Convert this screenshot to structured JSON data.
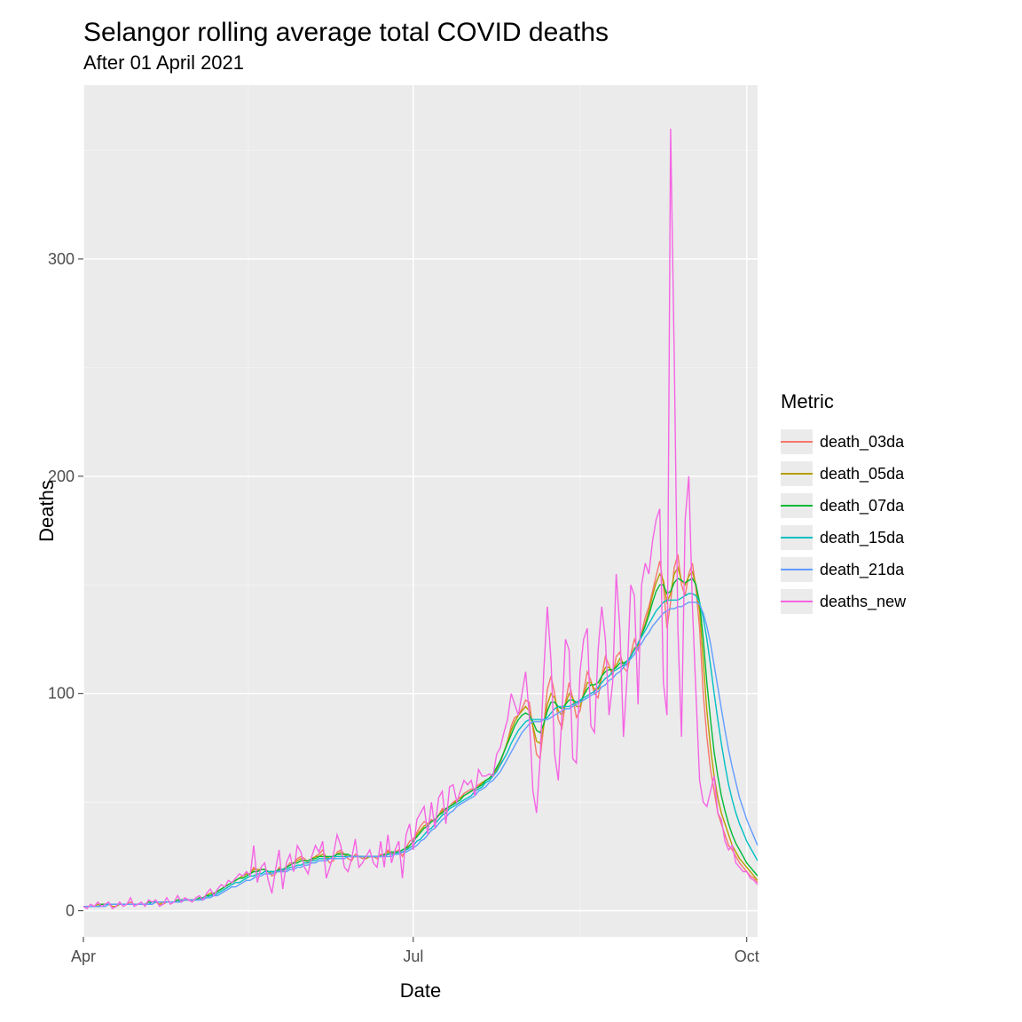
{
  "title": "Selangor rolling average total COVID deaths",
  "subtitle": "After 01 April 2021",
  "xlabel": "Date",
  "ylabel": "Deaths",
  "legend_title": "Metric",
  "chart": {
    "type": "line",
    "background_color": "#ebebeb",
    "grid_major_color": "#ffffff",
    "grid_minor_color": "#f5f5f5",
    "axis_text_color": "#4d4d4d",
    "axis_title_color": "#000000",
    "title_fontsize": 30,
    "subtitle_fontsize": 22,
    "axis_title_fontsize": 22,
    "axis_text_fontsize": 18,
    "legend_title_fontsize": 22,
    "legend_text_fontsize": 18,
    "line_width": 1.4,
    "x_domain_days": [
      0,
      186
    ],
    "x_ticks": [
      {
        "day": 0,
        "label": "Apr"
      },
      {
        "day": 91,
        "label": "Jul"
      },
      {
        "day": 183,
        "label": "Oct"
      }
    ],
    "y_domain": [
      -12,
      380
    ],
    "y_ticks": [
      0,
      100,
      200,
      300
    ],
    "y_minor_ticks": [
      50,
      150,
      250,
      350
    ],
    "series": [
      {
        "name": "death_03da",
        "color": "#f8766d",
        "values": [
          2,
          2,
          2,
          2,
          3,
          3,
          3,
          3,
          2,
          2,
          3,
          3,
          3,
          4,
          3,
          3,
          3,
          3,
          4,
          4,
          4,
          3,
          3,
          4,
          4,
          4,
          5,
          5,
          5,
          5,
          5,
          5,
          6,
          6,
          7,
          8,
          8,
          9,
          10,
          11,
          12,
          13,
          14,
          15,
          16,
          17,
          17,
          20,
          18,
          19,
          19,
          18,
          16,
          17,
          20,
          18,
          20,
          22,
          22,
          24,
          25,
          24,
          22,
          23,
          25,
          26,
          28,
          24,
          22,
          23,
          27,
          28,
          26,
          24,
          23,
          26,
          25,
          24,
          24,
          25,
          25,
          24,
          26,
          25,
          28,
          26,
          27,
          28,
          25,
          29,
          32,
          33,
          36,
          39,
          41,
          40,
          42,
          41,
          44,
          47,
          46,
          48,
          50,
          51,
          52,
          54,
          55,
          56,
          56,
          58,
          59,
          60,
          61,
          62,
          65,
          68,
          73,
          78,
          85,
          89,
          90,
          93,
          97,
          96,
          84,
          72,
          70,
          85,
          102,
          108,
          100,
          88,
          84,
          96,
          105,
          98,
          89,
          92,
          101,
          110,
          106,
          100,
          98,
          108,
          117,
          113,
          108,
          117,
          119,
          112,
          110,
          118,
          125,
          120,
          128,
          135,
          140,
          147,
          154,
          161,
          150,
          130,
          142,
          158,
          164,
          150,
          145,
          155,
          160,
          148,
          130,
          100,
          80,
          65,
          55,
          45,
          40,
          35,
          30,
          28,
          25,
          22,
          20,
          18,
          16,
          15,
          13
        ]
      },
      {
        "name": "death_05da",
        "color": "#b79f00",
        "values": [
          2,
          2,
          2,
          2,
          3,
          3,
          3,
          3,
          2,
          2,
          3,
          3,
          3,
          3,
          3,
          3,
          3,
          3,
          4,
          4,
          4,
          3,
          4,
          4,
          4,
          4,
          5,
          5,
          5,
          5,
          5,
          5,
          6,
          6,
          7,
          8,
          8,
          9,
          10,
          11,
          12,
          13,
          14,
          15,
          16,
          17,
          17,
          19,
          19,
          19,
          19,
          18,
          17,
          18,
          19,
          19,
          20,
          21,
          22,
          23,
          24,
          23,
          23,
          24,
          25,
          25,
          26,
          25,
          24,
          25,
          26,
          27,
          26,
          25,
          25,
          25,
          25,
          25,
          24,
          25,
          25,
          25,
          25,
          26,
          27,
          27,
          27,
          27,
          27,
          28,
          30,
          32,
          35,
          37,
          39,
          40,
          41,
          42,
          44,
          46,
          47,
          48,
          49,
          51,
          52,
          53,
          54,
          55,
          56,
          57,
          59,
          60,
          61,
          63,
          65,
          69,
          73,
          78,
          83,
          87,
          90,
          92,
          94,
          92,
          85,
          78,
          77,
          85,
          95,
          100,
          98,
          92,
          90,
          95,
          100,
          98,
          94,
          94,
          99,
          105,
          105,
          102,
          102,
          108,
          112,
          112,
          110,
          113,
          116,
          114,
          113,
          117,
          121,
          122,
          127,
          132,
          138,
          145,
          151,
          155,
          152,
          142,
          146,
          155,
          158,
          152,
          150,
          154,
          156,
          150,
          138,
          115,
          92,
          75,
          62,
          52,
          45,
          40,
          35,
          30,
          27,
          24,
          22,
          20,
          18,
          16,
          14
        ]
      },
      {
        "name": "death_07da",
        "color": "#00ba38",
        "values": [
          2,
          2,
          2,
          2,
          2,
          3,
          3,
          3,
          3,
          3,
          3,
          3,
          3,
          3,
          3,
          3,
          3,
          3,
          4,
          4,
          4,
          4,
          4,
          4,
          4,
          4,
          5,
          5,
          5,
          5,
          5,
          5,
          6,
          6,
          7,
          7,
          8,
          9,
          10,
          11,
          12,
          13,
          14,
          15,
          15,
          16,
          17,
          18,
          18,
          19,
          19,
          18,
          18,
          18,
          19,
          19,
          20,
          21,
          22,
          22,
          23,
          23,
          23,
          24,
          24,
          25,
          25,
          25,
          25,
          25,
          26,
          26,
          26,
          26,
          25,
          25,
          25,
          25,
          25,
          25,
          25,
          25,
          25,
          26,
          26,
          27,
          27,
          27,
          28,
          29,
          30,
          32,
          34,
          36,
          38,
          39,
          41,
          42,
          44,
          45,
          47,
          48,
          49,
          50,
          51,
          53,
          54,
          55,
          56,
          57,
          58,
          60,
          61,
          63,
          66,
          69,
          73,
          77,
          81,
          85,
          88,
          90,
          91,
          90,
          87,
          83,
          82,
          86,
          92,
          96,
          96,
          94,
          93,
          95,
          97,
          97,
          96,
          96,
          99,
          102,
          104,
          104,
          105,
          108,
          110,
          111,
          111,
          112,
          114,
          114,
          115,
          117,
          120,
          123,
          127,
          131,
          136,
          142,
          147,
          150,
          150,
          146,
          147,
          151,
          153,
          152,
          151,
          152,
          153,
          150,
          142,
          125,
          105,
          88,
          73,
          62,
          53,
          46,
          40,
          35,
          31,
          28,
          25,
          22,
          20,
          18,
          16
        ]
      },
      {
        "name": "death_15da",
        "color": "#00bfc4",
        "values": [
          2,
          2,
          2,
          2,
          2,
          2,
          3,
          3,
          3,
          3,
          3,
          3,
          3,
          3,
          3,
          3,
          3,
          3,
          3,
          4,
          4,
          4,
          4,
          4,
          4,
          4,
          4,
          5,
          5,
          5,
          5,
          5,
          5,
          6,
          6,
          7,
          7,
          8,
          9,
          10,
          11,
          12,
          13,
          13,
          14,
          15,
          16,
          16,
          17,
          17,
          18,
          18,
          18,
          18,
          18,
          19,
          19,
          20,
          20,
          21,
          21,
          22,
          22,
          23,
          23,
          24,
          24,
          24,
          24,
          25,
          25,
          25,
          25,
          25,
          25,
          25,
          25,
          25,
          25,
          25,
          25,
          25,
          25,
          25,
          26,
          26,
          26,
          27,
          27,
          28,
          29,
          30,
          32,
          33,
          35,
          37,
          38,
          40,
          42,
          44,
          45,
          47,
          48,
          49,
          50,
          51,
          52,
          53,
          55,
          56,
          57,
          59,
          60,
          62,
          64,
          67,
          70,
          73,
          77,
          80,
          83,
          85,
          87,
          88,
          88,
          88,
          88,
          88,
          89,
          91,
          93,
          94,
          94,
          94,
          94,
          95,
          96,
          97,
          98,
          99,
          100,
          101,
          103,
          105,
          107,
          108,
          110,
          111,
          112,
          113,
          115,
          117,
          120,
          123,
          126,
          129,
          132,
          135,
          138,
          140,
          142,
          143,
          143,
          143,
          143,
          144,
          145,
          146,
          146,
          145,
          142,
          135,
          125,
          113,
          100,
          88,
          77,
          67,
          58,
          51,
          45,
          40,
          36,
          32,
          29,
          26,
          23
        ]
      },
      {
        "name": "death_21da",
        "color": "#619cff",
        "values": [
          2,
          2,
          2,
          2,
          2,
          2,
          2,
          3,
          3,
          3,
          3,
          3,
          3,
          3,
          3,
          3,
          3,
          3,
          3,
          3,
          4,
          4,
          4,
          4,
          4,
          4,
          4,
          4,
          5,
          5,
          5,
          5,
          5,
          5,
          6,
          6,
          7,
          7,
          8,
          9,
          10,
          11,
          11,
          12,
          13,
          14,
          14,
          15,
          16,
          16,
          17,
          17,
          17,
          18,
          18,
          18,
          18,
          19,
          19,
          20,
          20,
          21,
          21,
          22,
          22,
          23,
          23,
          23,
          24,
          24,
          24,
          24,
          24,
          25,
          25,
          25,
          25,
          25,
          25,
          25,
          25,
          25,
          25,
          25,
          25,
          25,
          26,
          26,
          27,
          27,
          28,
          29,
          30,
          32,
          33,
          35,
          37,
          38,
          40,
          42,
          43,
          45,
          46,
          48,
          49,
          50,
          51,
          52,
          53,
          55,
          56,
          57,
          59,
          60,
          62,
          64,
          67,
          70,
          73,
          76,
          79,
          82,
          84,
          86,
          87,
          87,
          87,
          88,
          88,
          89,
          90,
          91,
          92,
          93,
          93,
          94,
          95,
          96,
          97,
          98,
          99,
          100,
          101,
          103,
          104,
          106,
          107,
          109,
          110,
          112,
          114,
          116,
          118,
          121,
          123,
          126,
          128,
          131,
          133,
          135,
          137,
          138,
          139,
          139,
          140,
          140,
          141,
          142,
          142,
          142,
          141,
          137,
          131,
          123,
          113,
          103,
          93,
          83,
          74,
          66,
          59,
          52,
          47,
          42,
          38,
          34,
          30
        ]
      },
      {
        "name": "deaths_new",
        "color": "#f564e3",
        "values": [
          2,
          1,
          3,
          2,
          4,
          2,
          3,
          4,
          1,
          2,
          4,
          2,
          3,
          6,
          2,
          3,
          4,
          2,
          5,
          4,
          5,
          2,
          3,
          6,
          3,
          4,
          7,
          4,
          6,
          5,
          4,
          6,
          7,
          5,
          8,
          10,
          7,
          10,
          12,
          11,
          14,
          13,
          15,
          17,
          16,
          18,
          16,
          30,
          13,
          20,
          22,
          14,
          8,
          19,
          28,
          10,
          22,
          26,
          18,
          30,
          27,
          20,
          17,
          25,
          30,
          27,
          32,
          15,
          20,
          26,
          35,
          30,
          20,
          18,
          24,
          33,
          20,
          22,
          25,
          28,
          22,
          20,
          32,
          20,
          35,
          22,
          28,
          32,
          15,
          35,
          40,
          28,
          42,
          45,
          48,
          35,
          50,
          38,
          52,
          55,
          40,
          57,
          58,
          50,
          55,
          60,
          58,
          60,
          53,
          65,
          62,
          62,
          63,
          62,
          72,
          75,
          82,
          88,
          100,
          95,
          90,
          100,
          110,
          90,
          55,
          45,
          70,
          110,
          140,
          115,
          72,
          60,
          90,
          125,
          120,
          70,
          68,
          110,
          125,
          130,
          85,
          82,
          120,
          140,
          125,
          90,
          105,
          155,
          130,
          80,
          108,
          150,
          145,
          95,
          150,
          160,
          155,
          170,
          180,
          185,
          105,
          90,
          360,
          255,
          130,
          80,
          180,
          200,
          140,
          100,
          60,
          50,
          48,
          55,
          62,
          45,
          42,
          32,
          28,
          30,
          22,
          20,
          18,
          18,
          15,
          14,
          12
        ]
      }
    ]
  },
  "legend_items": [
    {
      "label": "death_03da",
      "color": "#f8766d"
    },
    {
      "label": "death_05da",
      "color": "#b79f00"
    },
    {
      "label": "death_07da",
      "color": "#00ba38"
    },
    {
      "label": "death_15da",
      "color": "#00bfc4"
    },
    {
      "label": "death_21da",
      "color": "#619cff"
    },
    {
      "label": "deaths_new",
      "color": "#f564e3"
    }
  ]
}
